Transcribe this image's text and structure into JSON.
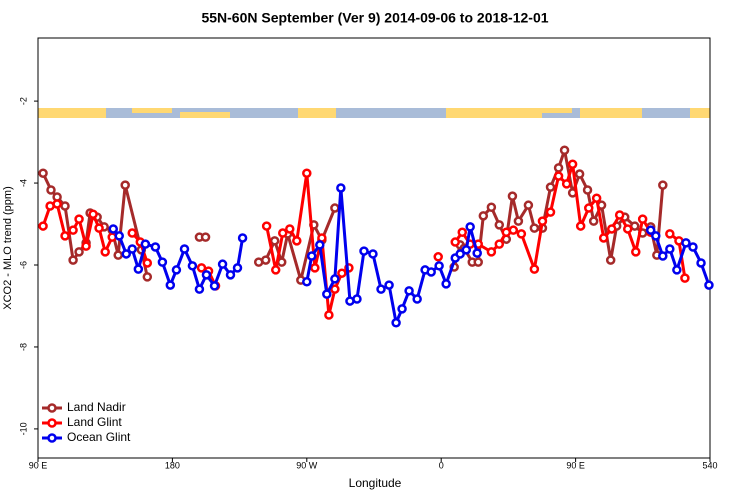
{
  "chart_data": {
    "type": "line",
    "title": "55N-60N September (Ver 9)   2014-09-06 to 2018-12-01",
    "xlabel": "Longitude",
    "ylabel": "XCO2 - MLO trend (ppm)",
    "xlim": [
      90,
      540
    ],
    "ylim": [
      -10.71,
      -0.46
    ],
    "xticks": [
      {
        "value": 90,
        "label": "90 E"
      },
      180,
      {
        "value": 270,
        "label": "90 W"
      },
      {
        "value": 360,
        "label": "0"
      },
      {
        "value": 450,
        "label": "90 E"
      },
      540
    ],
    "yticks": [
      -2,
      -4,
      -6,
      -8,
      -10
    ],
    "legend": "bottom-left",
    "series": [
      {
        "name": "Land Nadir",
        "color": "#a52a2a",
        "x": [
          93.4,
          98.7,
          102.8,
          108.1,
          113.5,
          117.5,
          122.2,
          124.9,
          129.6,
          134.3,
          139.7,
          143.7,
          148.4,
          159.2,
          163.2,
          null,
          198.1,
          202.2,
          null,
          237.8,
          242.5,
          248.5,
          253.2,
          257.2,
          266.0,
          274.7,
          280.1,
          288.8,
          null,
          368.7,
          372.7,
          375.4,
          380.8,
          384.8,
          388.2,
          393.6,
          398.9,
          403.6,
          407.7,
          411.7,
          418.4,
          422.4,
          427.8,
          433.2,
          438.6,
          442.6,
          448.0,
          452.7,
          458.0,
          462.1,
          467.4,
          473.5,
          477.5,
          482.9,
          489.6,
          494.9,
          500.3,
          504.4,
          508.4
        ],
        "values": [
          -3.76,
          -4.17,
          -4.34,
          -4.56,
          -5.88,
          -5.68,
          -5.46,
          -4.73,
          -4.83,
          -5.07,
          -5.15,
          -5.76,
          -4.05,
          -5.63,
          -6.29,
          null,
          -5.32,
          -5.32,
          null,
          -5.93,
          -5.88,
          -5.41,
          -5.93,
          -5.24,
          -6.37,
          -5.02,
          -5.39,
          -4.61,
          null,
          -6.05,
          -5.51,
          -5.59,
          -5.93,
          -5.93,
          -4.8,
          -4.59,
          -5.02,
          -5.37,
          -4.32,
          -4.93,
          -4.54,
          -5.1,
          -5.1,
          -4.1,
          -3.63,
          -3.2,
          -4.24,
          -3.78,
          -4.17,
          -4.93,
          -4.54,
          -5.88,
          -5.05,
          -4.83,
          -5.05,
          -5.22,
          -5.07,
          -5.76,
          -4.05
        ]
      },
      {
        "name": "Land Glint",
        "color": "#ff0000",
        "x": [
          93.4,
          98.1,
          102.8,
          108.1,
          113.5,
          117.5,
          122.2,
          126.9,
          130.9,
          135.0,
          139.7,
          null,
          153.1,
          158.5,
          163.2,
          null,
          199.5,
          204.2,
          208.9,
          null,
          243.1,
          249.2,
          253.9,
          258.6,
          263.3,
          270.0,
          275.4,
          280.1,
          284.8,
          288.8,
          293.5,
          298.2,
          null,
          358.0,
          null,
          369.4,
          374.1,
          379.4,
          384.8,
          393.6,
          398.9,
          403.6,
          408.3,
          413.7,
          422.4,
          427.8,
          433.2,
          438.6,
          444.0,
          448.0,
          453.4,
          458.8,
          464.1,
          468.8,
          474.2,
          479.5,
          484.9,
          490.3,
          494.9,
          500.3,
          null,
          513.1,
          519.2,
          523.2
        ],
        "values": [
          -5.05,
          -4.56,
          -4.51,
          -5.29,
          -5.15,
          -4.88,
          -5.54,
          -4.76,
          -5.1,
          -5.68,
          -5.32,
          null,
          -5.22,
          -5.44,
          -5.95,
          null,
          -6.07,
          -6.15,
          -6.51,
          null,
          -5.05,
          -6.12,
          -5.22,
          -5.12,
          -5.41,
          -3.76,
          -6.07,
          -5.34,
          -7.22,
          -6.59,
          -6.2,
          -6.07,
          null,
          -5.8,
          null,
          -5.44,
          -5.2,
          -5.49,
          -5.49,
          -5.68,
          -5.49,
          -5.2,
          -5.15,
          -5.24,
          -6.1,
          -4.93,
          -4.71,
          -3.83,
          -4.02,
          -3.54,
          -5.05,
          -4.61,
          -4.37,
          -5.34,
          -5.12,
          -4.78,
          -5.12,
          -5.68,
          -4.88,
          -5.2,
          null,
          -5.24,
          -5.41,
          -6.32
        ]
      },
      {
        "name": "Ocean Glint",
        "color": "#0000ee",
        "x": [
          140.4,
          144.4,
          149.1,
          153.1,
          157.2,
          161.9,
          168.6,
          173.3,
          178.6,
          182.7,
          188.1,
          193.4,
          198.1,
          202.8,
          208.2,
          213.6,
          218.9,
          223.6,
          227.0,
          null,
          270.0,
          273.3,
          278.7,
          283.4,
          288.8,
          292.8,
          298.9,
          303.6,
          308.3,
          314.3,
          319.7,
          325.1,
          329.8,
          333.8,
          338.5,
          343.9,
          349.2,
          353.3,
          358.6,
          363.3,
          369.4,
          372.7,
          376.8,
          379.4,
          384.1,
          null,
          500.3,
          503.7,
          508.4,
          513.1,
          517.8,
          523.9,
          528.6,
          534.0,
          539.3
        ],
        "values": [
          -5.12,
          -5.29,
          -5.73,
          -5.61,
          -6.1,
          -5.49,
          -5.56,
          -5.93,
          -6.49,
          -6.12,
          -5.61,
          -6.02,
          -6.59,
          -6.24,
          -6.51,
          -5.98,
          -6.24,
          -6.07,
          -5.34,
          null,
          -6.41,
          -5.78,
          -5.51,
          -6.71,
          -6.34,
          -4.12,
          -6.88,
          -6.83,
          -5.66,
          -5.73,
          -6.59,
          -6.49,
          -7.41,
          -7.07,
          -6.63,
          -6.83,
          -6.12,
          -6.17,
          -6.02,
          -6.46,
          -5.83,
          -5.73,
          -5.63,
          -5.07,
          -5.71,
          null,
          -5.15,
          -5.29,
          -5.78,
          -5.61,
          -6.12,
          -5.46,
          -5.56,
          -5.95,
          -6.49
        ]
      }
    ]
  }
}
